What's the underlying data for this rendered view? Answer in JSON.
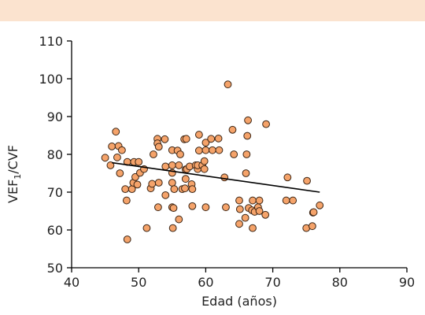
{
  "colors": {
    "header_band": "#fbe3cf",
    "point_fill": "#f5a36a",
    "point_stroke": "#3a2414",
    "trend_line": "#000000"
  },
  "chart_data": {
    "type": "scatter",
    "title": "",
    "xlabel": "Edad (años)",
    "ylabel": {
      "main": "VEF",
      "sub": "1",
      "rest": "/CVF"
    },
    "xlim": [
      40,
      90
    ],
    "ylim": [
      50,
      110
    ],
    "xticks": [
      "40",
      "50",
      "60",
      "70",
      "80",
      "90"
    ],
    "yticks": [
      "50",
      "60",
      "70",
      "80",
      "90",
      "100",
      "110"
    ],
    "grid": false,
    "legend": "none",
    "trendline": {
      "x": [
        46,
        77
      ],
      "y": [
        77.8,
        70
      ]
    },
    "series": [
      {
        "x": [
          45,
          45.8,
          46,
          46.6,
          46.8,
          47,
          47.2,
          47.5,
          48,
          48.2,
          48.3,
          48.3,
          49,
          49.2,
          49.3,
          49.5,
          49.8,
          50,
          50.2,
          50.8,
          51.2,
          51.8,
          52,
          52.2,
          52.8,
          52.8,
          52.9,
          53,
          53,
          53.9,
          54,
          54,
          55,
          55,
          55,
          55,
          55,
          55.1,
          55.2,
          55.3,
          55.8,
          56,
          56,
          56.2,
          56.5,
          56.8,
          56.9,
          57,
          57,
          57.1,
          57.2,
          57.6,
          57.9,
          58,
          58,
          58.5,
          58.8,
          58.8,
          59,
          59,
          59.5,
          59.8,
          59.8,
          60,
          60,
          60,
          60.8,
          61,
          61.9,
          62,
          62.8,
          63,
          63.3,
          64,
          64.2,
          65,
          65,
          65.1,
          65.9,
          66,
          66.1,
          66.2,
          66.3,
          66.4,
          66.9,
          67,
          67,
          67.3,
          67.8,
          68,
          68,
          68.9,
          69,
          72,
          72.2,
          73,
          75,
          75.1,
          75.9,
          76,
          76.1,
          77
        ],
        "y": [
          79.1,
          77.1,
          82.1,
          86,
          79.2,
          82.2,
          75,
          81.1,
          70.8,
          67.8,
          57.5,
          78,
          70.8,
          72.5,
          78,
          74,
          72,
          78,
          75.1,
          76.1,
          60.5,
          71,
          72.2,
          80,
          84.1,
          82.9,
          66,
          72.5,
          82,
          84,
          69.2,
          76.8,
          81.1,
          77.1,
          75.1,
          72.5,
          66,
          60.5,
          65.8,
          70.8,
          81,
          77.1,
          62.8,
          80,
          70.8,
          84,
          71,
          76,
          73.5,
          84.1,
          76.1,
          76.8,
          72.1,
          70.8,
          66.3,
          77.1,
          76.1,
          77.1,
          81,
          85.2,
          77.1,
          78.2,
          76.1,
          66,
          81.1,
          83.1,
          84.1,
          81.1,
          84.2,
          81.1,
          73.9,
          66,
          98.5,
          86.5,
          80,
          67.8,
          61.6,
          65.5,
          63.2,
          75,
          80,
          84.9,
          89,
          65.8,
          65.2,
          67.8,
          60.5,
          64.8,
          66,
          67.8,
          65,
          64,
          88,
          67.8,
          73.9,
          67.8,
          60.5,
          73,
          61,
          64.6,
          64.7,
          66.5
        ]
      }
    ]
  }
}
